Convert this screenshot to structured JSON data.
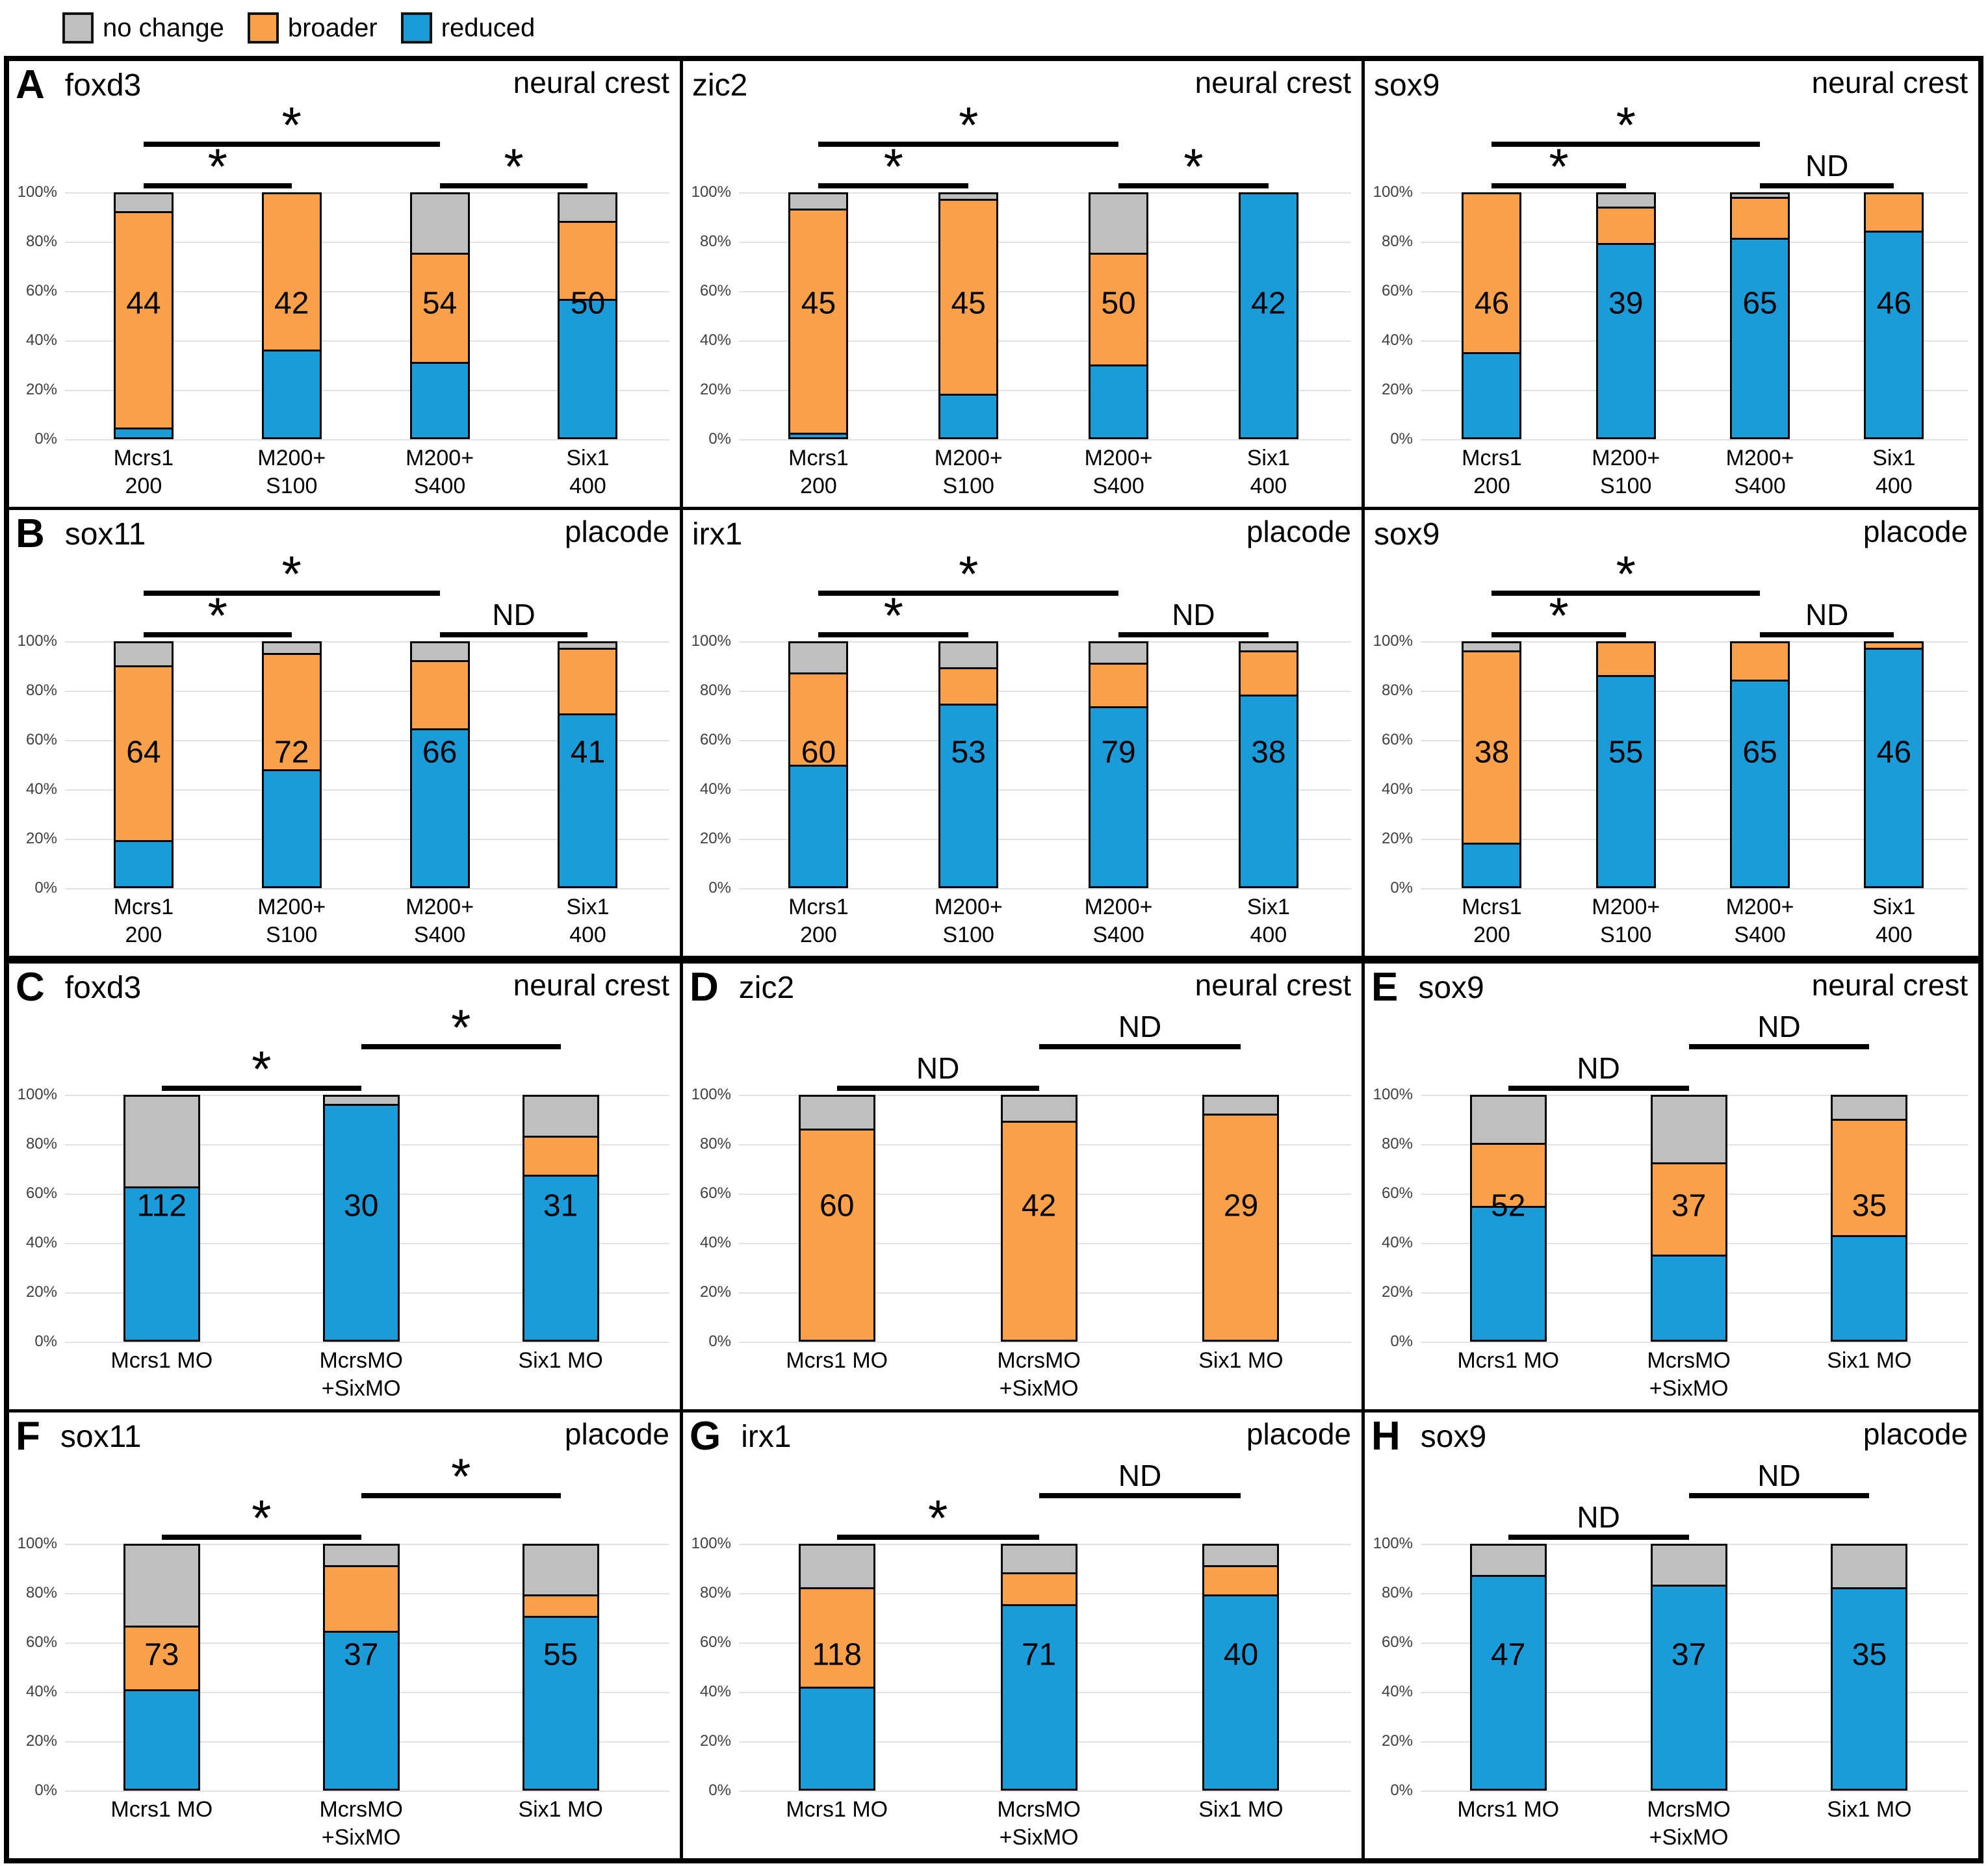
{
  "legend": {
    "items": [
      {
        "label": "no change",
        "key": "no_change"
      },
      {
        "label": "broader",
        "key": "broader"
      },
      {
        "label": "reduced",
        "key": "reduced"
      }
    ]
  },
  "colors": {
    "no_change": "#BFBFBF",
    "broader": "#F9A04B",
    "reduced": "#1B9BD8"
  },
  "y_axis": {
    "ticks": [
      "100%",
      "80%",
      "60%",
      "40%",
      "20%",
      "0%"
    ]
  },
  "chart_data": [
    {
      "type": "bar",
      "stacked": true,
      "panel": "A",
      "gene": "foxd3",
      "region": "neural crest",
      "categories": [
        [
          "Mcrs1",
          "200"
        ],
        [
          "M200+",
          "S100"
        ],
        [
          "M200+",
          "S400"
        ],
        [
          "Six1",
          "400"
        ]
      ],
      "n": [
        44,
        42,
        54,
        50
      ],
      "series": [
        {
          "name": "reduced",
          "values": [
            4,
            36,
            31,
            57
          ]
        },
        {
          "name": "broader",
          "values": [
            89,
            64,
            45,
            32
          ]
        },
        {
          "name": "no_change",
          "values": [
            7,
            0,
            24,
            11
          ]
        }
      ],
      "ylim": [
        0,
        100
      ],
      "sig": [
        {
          "from": 0,
          "to": 2,
          "label": "*",
          "level": 0
        },
        {
          "from": 0,
          "to": 1,
          "label": "*",
          "level": 1
        },
        {
          "from": 2,
          "to": 3,
          "label": "*",
          "level": 1
        }
      ]
    },
    {
      "type": "bar",
      "stacked": true,
      "panel": "",
      "gene": "zic2",
      "region": "neural crest",
      "categories": [
        [
          "Mcrs1",
          "200"
        ],
        [
          "M200+",
          "S100"
        ],
        [
          "M200+",
          "S400"
        ],
        [
          "Six1",
          "400"
        ]
      ],
      "n": [
        45,
        45,
        50,
        42
      ],
      "series": [
        {
          "name": "reduced",
          "values": [
            2,
            18,
            30,
            100
          ]
        },
        {
          "name": "broader",
          "values": [
            92,
            80,
            46,
            0
          ]
        },
        {
          "name": "no_change",
          "values": [
            6,
            2,
            24,
            0
          ]
        }
      ],
      "ylim": [
        0,
        100
      ],
      "sig": [
        {
          "from": 0,
          "to": 2,
          "label": "*",
          "level": 0
        },
        {
          "from": 0,
          "to": 1,
          "label": "*",
          "level": 1
        },
        {
          "from": 2,
          "to": 3,
          "label": "*",
          "level": 1
        }
      ]
    },
    {
      "type": "bar",
      "stacked": true,
      "panel": "",
      "gene": "sox9",
      "region": "neural crest",
      "categories": [
        [
          "Mcrs1",
          "200"
        ],
        [
          "M200+",
          "S100"
        ],
        [
          "M200+",
          "S400"
        ],
        [
          "Six1",
          "400"
        ]
      ],
      "n": [
        46,
        39,
        65,
        46
      ],
      "series": [
        {
          "name": "reduced",
          "values": [
            35,
            80,
            82,
            85
          ]
        },
        {
          "name": "broader",
          "values": [
            65,
            15,
            17,
            15
          ]
        },
        {
          "name": "no_change",
          "values": [
            0,
            5,
            1,
            0
          ]
        }
      ],
      "ylim": [
        0,
        100
      ],
      "sig": [
        {
          "from": 0,
          "to": 2,
          "label": "*",
          "level": 0
        },
        {
          "from": 0,
          "to": 1,
          "label": "*",
          "level": 1
        },
        {
          "from": 2,
          "to": 3,
          "label": "ND",
          "level": 1
        }
      ]
    },
    {
      "type": "bar",
      "stacked": true,
      "panel": "B",
      "gene": "sox11",
      "region": "placode",
      "categories": [
        [
          "Mcrs1",
          "200"
        ],
        [
          "M200+",
          "S100"
        ],
        [
          "M200+",
          "S400"
        ],
        [
          "Six1",
          "400"
        ]
      ],
      "n": [
        64,
        72,
        66,
        41
      ],
      "series": [
        {
          "name": "reduced",
          "values": [
            19,
            48,
            65,
            71
          ]
        },
        {
          "name": "broader",
          "values": [
            72,
            48,
            28,
            27
          ]
        },
        {
          "name": "no_change",
          "values": [
            9,
            4,
            7,
            2
          ]
        }
      ],
      "ylim": [
        0,
        100
      ],
      "sig": [
        {
          "from": 0,
          "to": 2,
          "label": "*",
          "level": 0
        },
        {
          "from": 0,
          "to": 1,
          "label": "*",
          "level": 1
        },
        {
          "from": 2,
          "to": 3,
          "label": "ND",
          "level": 1
        }
      ]
    },
    {
      "type": "bar",
      "stacked": true,
      "panel": "",
      "gene": "irx1",
      "region": "placode",
      "categories": [
        [
          "Mcrs1",
          "200"
        ],
        [
          "M200+",
          "S100"
        ],
        [
          "M200+",
          "S400"
        ],
        [
          "Six1",
          "400"
        ]
      ],
      "n": [
        60,
        53,
        79,
        38
      ],
      "series": [
        {
          "name": "reduced",
          "values": [
            50,
            75,
            74,
            79
          ]
        },
        {
          "name": "broader",
          "values": [
            38,
            15,
            18,
            18
          ]
        },
        {
          "name": "no_change",
          "values": [
            12,
            10,
            8,
            3
          ]
        }
      ],
      "ylim": [
        0,
        100
      ],
      "sig": [
        {
          "from": 0,
          "to": 2,
          "label": "*",
          "level": 0
        },
        {
          "from": 0,
          "to": 1,
          "label": "*",
          "level": 1
        },
        {
          "from": 2,
          "to": 3,
          "label": "ND",
          "level": 1
        }
      ]
    },
    {
      "type": "bar",
      "stacked": true,
      "panel": "",
      "gene": "sox9",
      "region": "placode",
      "categories": [
        [
          "Mcrs1",
          "200"
        ],
        [
          "M200+",
          "S100"
        ],
        [
          "M200+",
          "S400"
        ],
        [
          "Six1",
          "400"
        ]
      ],
      "n": [
        38,
        55,
        65,
        46
      ],
      "series": [
        {
          "name": "reduced",
          "values": [
            18,
            87,
            85,
            98
          ]
        },
        {
          "name": "broader",
          "values": [
            79,
            13,
            15,
            2
          ]
        },
        {
          "name": "no_change",
          "values": [
            3,
            0,
            0,
            0
          ]
        }
      ],
      "ylim": [
        0,
        100
      ],
      "sig": [
        {
          "from": 0,
          "to": 2,
          "label": "*",
          "level": 0
        },
        {
          "from": 0,
          "to": 1,
          "label": "*",
          "level": 1
        },
        {
          "from": 2,
          "to": 3,
          "label": "ND",
          "level": 1
        }
      ]
    },
    {
      "type": "bar",
      "stacked": true,
      "panel": "C",
      "gene": "foxd3",
      "region": "neural crest",
      "categories": [
        [
          "Mcrs1 MO"
        ],
        [
          "McrsMO",
          "+SixMO"
        ],
        [
          "Six1 MO"
        ]
      ],
      "n": [
        112,
        30,
        31
      ],
      "series": [
        {
          "name": "reduced",
          "values": [
            63,
            97,
            68
          ]
        },
        {
          "name": "broader",
          "values": [
            0,
            0,
            16
          ]
        },
        {
          "name": "no_change",
          "values": [
            37,
            3,
            16
          ]
        }
      ],
      "ylim": [
        0,
        100
      ],
      "sig": [
        {
          "from": 1,
          "to": 2,
          "label": "*",
          "level": 0
        },
        {
          "from": 0,
          "to": 1,
          "label": "*",
          "level": 1
        }
      ]
    },
    {
      "type": "bar",
      "stacked": true,
      "panel": "D",
      "gene": "zic2",
      "region": "neural crest",
      "categories": [
        [
          "Mcrs1 MO"
        ],
        [
          "McrsMO",
          "+SixMO"
        ],
        [
          "Six1 MO"
        ]
      ],
      "n": [
        60,
        42,
        29
      ],
      "series": [
        {
          "name": "reduced",
          "values": [
            0,
            0,
            0
          ]
        },
        {
          "name": "broader",
          "values": [
            87,
            90,
            93
          ]
        },
        {
          "name": "no_change",
          "values": [
            13,
            10,
            7
          ]
        }
      ],
      "ylim": [
        0,
        100
      ],
      "sig": [
        {
          "from": 1,
          "to": 2,
          "label": "ND",
          "level": 0
        },
        {
          "from": 0,
          "to": 1,
          "label": "ND",
          "level": 1
        }
      ]
    },
    {
      "type": "bar",
      "stacked": true,
      "panel": "E",
      "gene": "sox9",
      "region": "neural crest",
      "categories": [
        [
          "Mcrs1 MO"
        ],
        [
          "McrsMO",
          "+SixMO"
        ],
        [
          "Six1 MO"
        ]
      ],
      "n": [
        52,
        37,
        35
      ],
      "series": [
        {
          "name": "reduced",
          "values": [
            55,
            35,
            43
          ]
        },
        {
          "name": "broader",
          "values": [
            26,
            38,
            48
          ]
        },
        {
          "name": "no_change",
          "values": [
            19,
            27,
            9
          ]
        }
      ],
      "ylim": [
        0,
        100
      ],
      "sig": [
        {
          "from": 1,
          "to": 2,
          "label": "ND",
          "level": 0
        },
        {
          "from": 0,
          "to": 1,
          "label": "ND",
          "level": 1
        }
      ]
    },
    {
      "type": "bar",
      "stacked": true,
      "panel": "F",
      "gene": "sox11",
      "region": "placode",
      "categories": [
        [
          "Mcrs1 MO"
        ],
        [
          "McrsMO",
          "+SixMO"
        ],
        [
          "Six1 MO"
        ]
      ],
      "n": [
        73,
        37,
        55
      ],
      "series": [
        {
          "name": "reduced",
          "values": [
            41,
            65,
            71
          ]
        },
        {
          "name": "broader",
          "values": [
            26,
            27,
            9
          ]
        },
        {
          "name": "no_change",
          "values": [
            33,
            8,
            20
          ]
        }
      ],
      "ylim": [
        0,
        100
      ],
      "sig": [
        {
          "from": 1,
          "to": 2,
          "label": "*",
          "level": 0
        },
        {
          "from": 0,
          "to": 1,
          "label": "*",
          "level": 1
        }
      ]
    },
    {
      "type": "bar",
      "stacked": true,
      "panel": "G",
      "gene": "irx1",
      "region": "placode",
      "categories": [
        [
          "Mcrs1 MO"
        ],
        [
          "McrsMO",
          "+SixMO"
        ],
        [
          "Six1 MO"
        ]
      ],
      "n": [
        118,
        71,
        40
      ],
      "series": [
        {
          "name": "reduced",
          "values": [
            42,
            76,
            80
          ]
        },
        {
          "name": "broader",
          "values": [
            41,
            13,
            12
          ]
        },
        {
          "name": "no_change",
          "values": [
            17,
            11,
            8
          ]
        }
      ],
      "ylim": [
        0,
        100
      ],
      "sig": [
        {
          "from": 1,
          "to": 2,
          "label": "ND",
          "level": 0
        },
        {
          "from": 0,
          "to": 1,
          "label": "*",
          "level": 1
        }
      ]
    },
    {
      "type": "bar",
      "stacked": true,
      "panel": "H",
      "gene": "sox9",
      "region": "placode",
      "categories": [
        [
          "Mcrs1 MO"
        ],
        [
          "McrsMO",
          "+SixMO"
        ],
        [
          "Six1 MO"
        ]
      ],
      "n": [
        47,
        37,
        35
      ],
      "series": [
        {
          "name": "reduced",
          "values": [
            88,
            84,
            83
          ]
        },
        {
          "name": "broader",
          "values": [
            0,
            0,
            0
          ]
        },
        {
          "name": "no_change",
          "values": [
            12,
            16,
            17
          ]
        }
      ],
      "ylim": [
        0,
        100
      ],
      "sig": [
        {
          "from": 1,
          "to": 2,
          "label": "ND",
          "level": 0
        },
        {
          "from": 0,
          "to": 1,
          "label": "ND",
          "level": 1
        }
      ]
    }
  ]
}
